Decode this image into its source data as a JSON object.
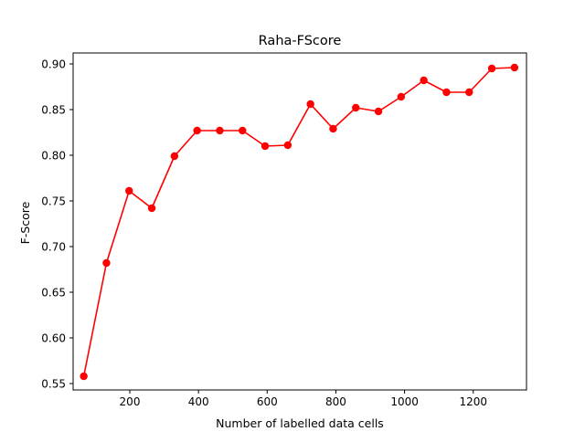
{
  "chart_data": {
    "type": "line",
    "title": "Raha-FScore",
    "xlabel": "Number of labelled data cells",
    "ylabel": "F-Score",
    "xlim": [
      35,
      1355
    ],
    "ylim": [
      0.543,
      0.912
    ],
    "xticks": [
      200,
      400,
      600,
      800,
      1000,
      1200
    ],
    "xtick_labels": [
      "200",
      "400",
      "600",
      "800",
      "1000",
      "1200"
    ],
    "yticks": [
      0.55,
      0.6,
      0.65,
      0.7,
      0.75,
      0.8,
      0.85,
      0.9
    ],
    "ytick_labels": [
      "0.55",
      "0.60",
      "0.65",
      "0.70",
      "0.75",
      "0.80",
      "0.85",
      "0.90"
    ],
    "grid": false,
    "series": [
      {
        "color": "#ff0000",
        "marker": "circle",
        "x": [
          66,
          132,
          198,
          264,
          330,
          396,
          462,
          528,
          594,
          660,
          726,
          792,
          858,
          924,
          990,
          1056,
          1122,
          1188,
          1254,
          1320
        ],
        "y": [
          0.558,
          0.682,
          0.761,
          0.742,
          0.799,
          0.827,
          0.827,
          0.827,
          0.81,
          0.811,
          0.856,
          0.829,
          0.852,
          0.848,
          0.864,
          0.882,
          0.869,
          0.869,
          0.895,
          0.896
        ]
      }
    ]
  }
}
